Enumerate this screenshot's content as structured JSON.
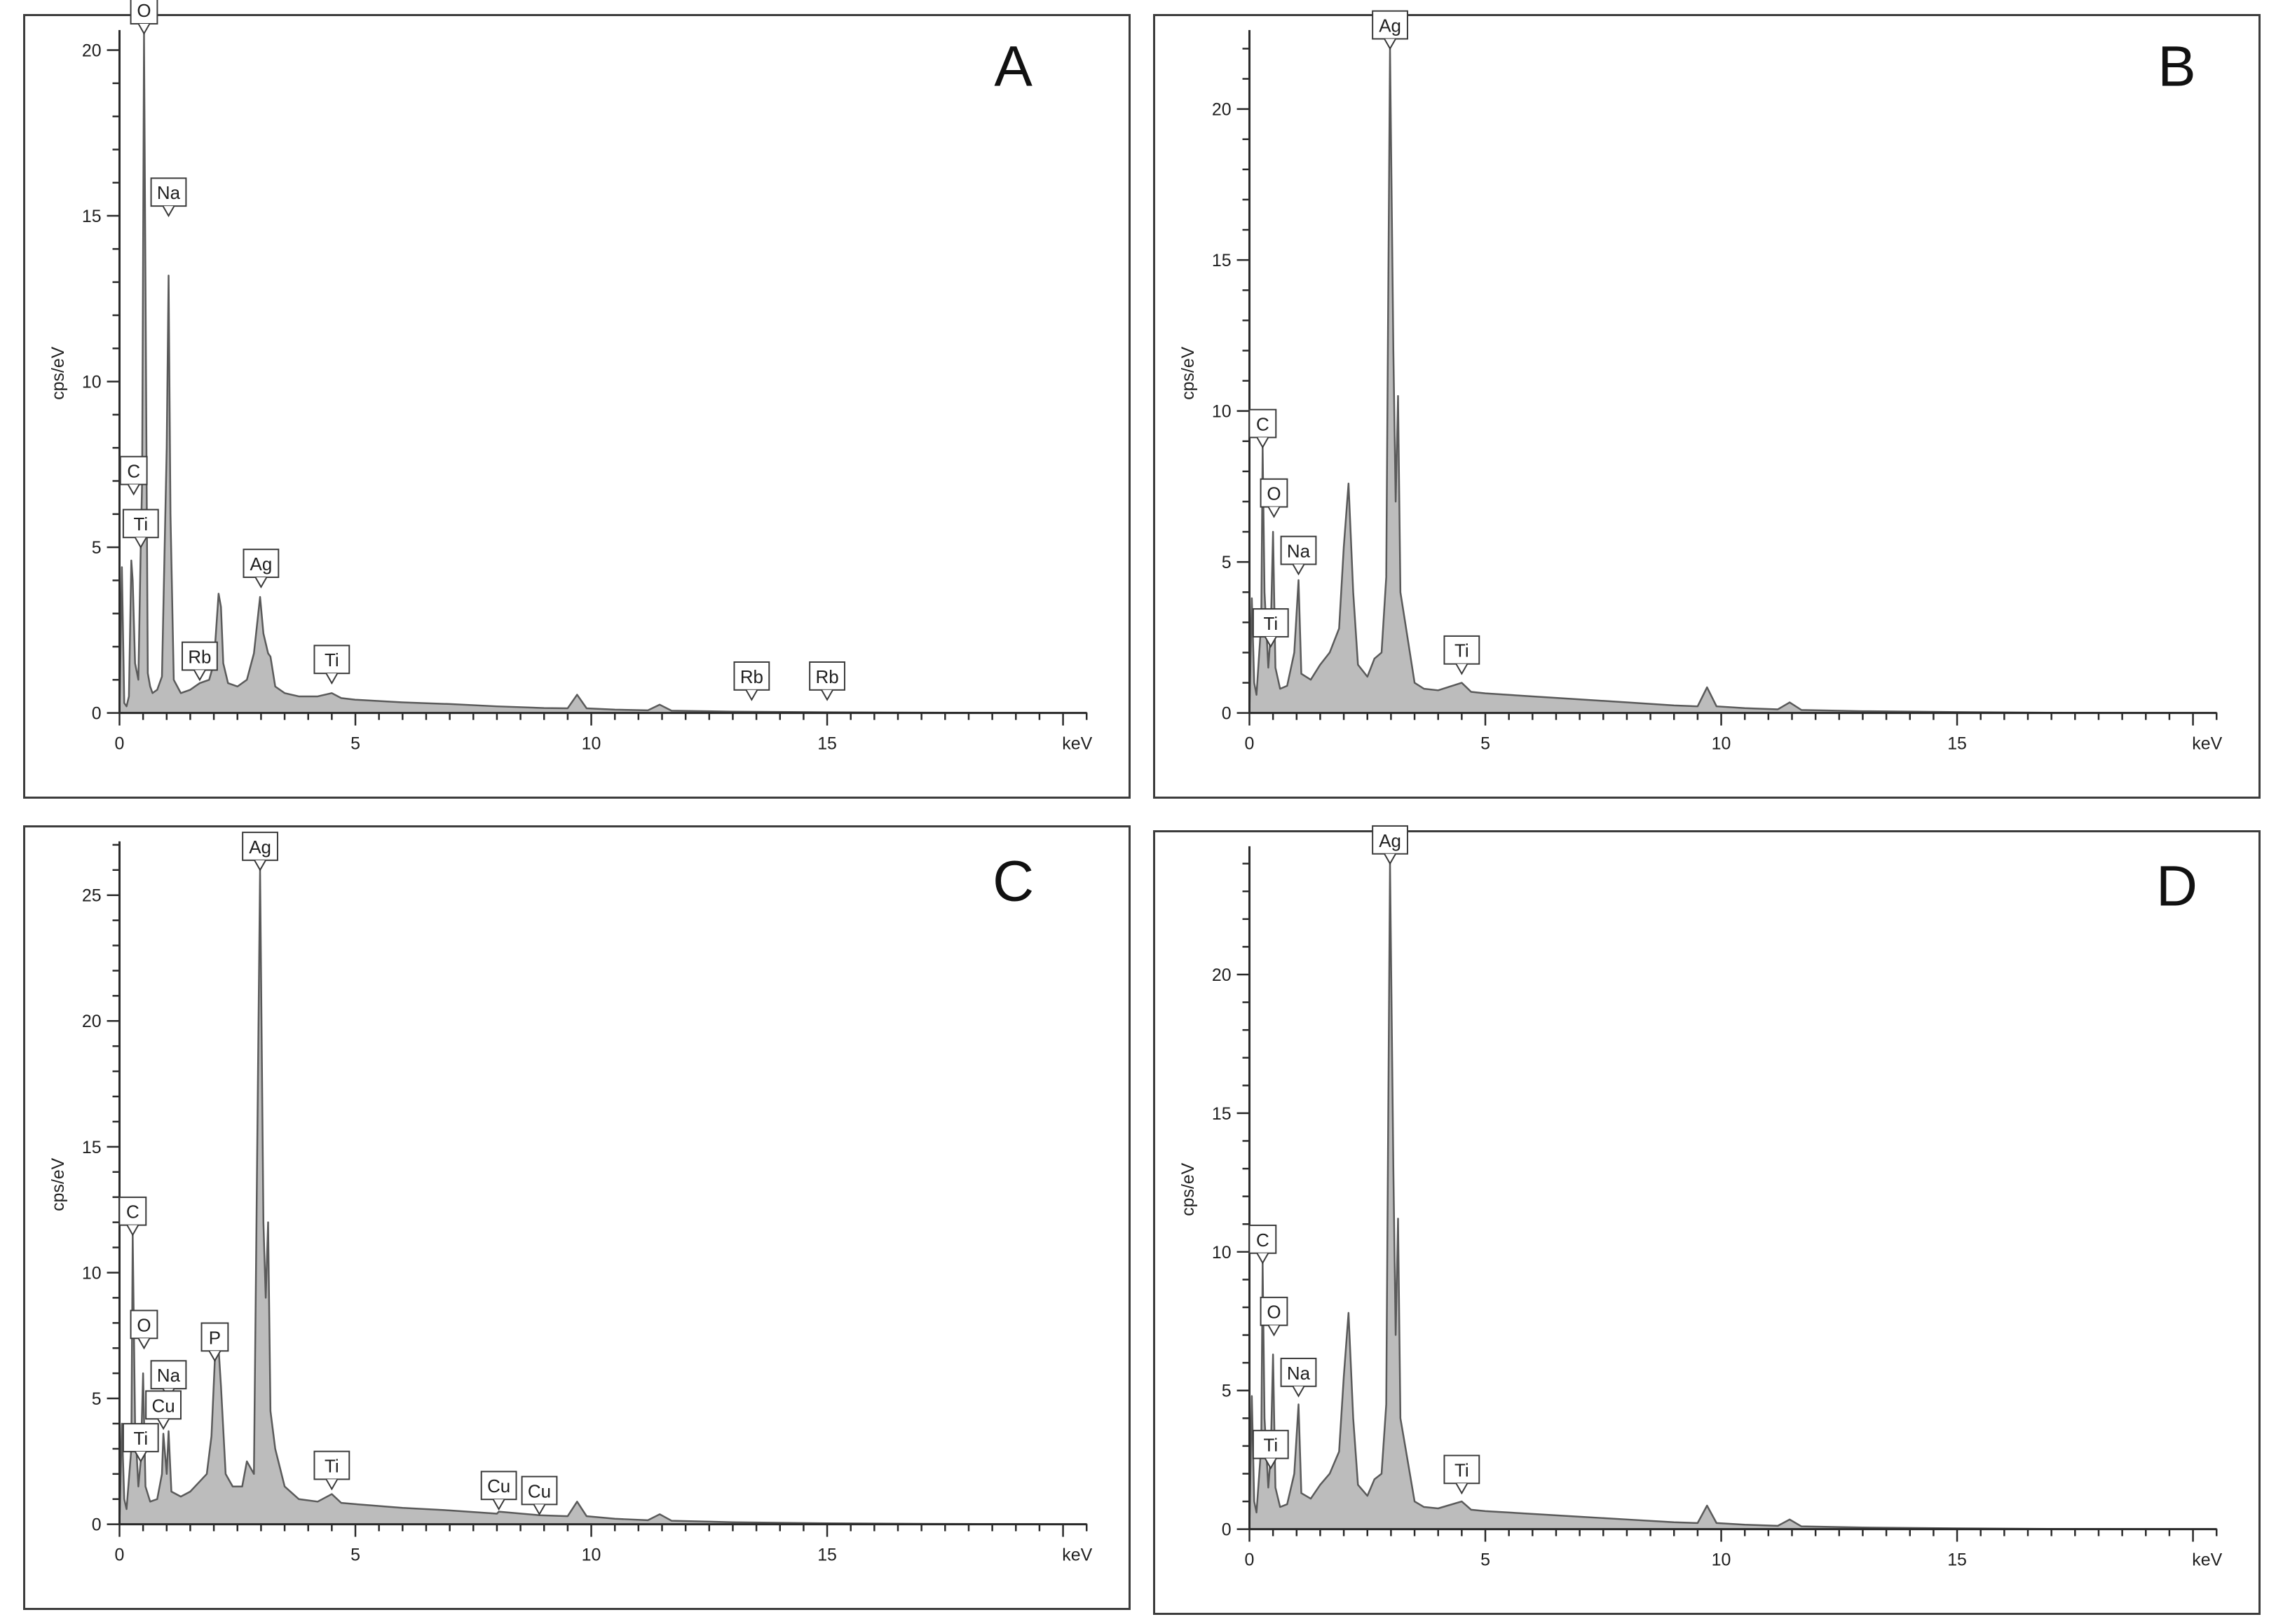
{
  "chart_data": [
    {
      "type": "area",
      "panel": "A",
      "ylabel": "cps/eV",
      "xunit": "keV",
      "xlim": [
        0,
        20.5
      ],
      "ylim": [
        0,
        20.5
      ],
      "yticks": [
        0,
        5,
        10,
        15,
        20
      ],
      "xticks": [
        0,
        5,
        10,
        15
      ],
      "spectrum": {
        "x": [
          0,
          0.05,
          0.1,
          0.15,
          0.2,
          0.25,
          0.28,
          0.33,
          0.4,
          0.45,
          0.48,
          0.52,
          0.55,
          0.6,
          0.65,
          0.7,
          0.8,
          0.9,
          1.0,
          1.04,
          1.08,
          1.15,
          1.3,
          1.5,
          1.7,
          1.9,
          2.0,
          2.1,
          2.15,
          2.2,
          2.3,
          2.5,
          2.7,
          2.85,
          2.98,
          3.05,
          3.15,
          3.2,
          3.3,
          3.5,
          3.8,
          4.2,
          4.5,
          4.7,
          5.0,
          6.0,
          7.0,
          8.0,
          9.0,
          9.5,
          9.7,
          9.9,
          10.5,
          11.2,
          11.45,
          11.7,
          13,
          15,
          17,
          20.5
        ],
        "y": [
          0,
          4.4,
          0.3,
          0.2,
          0.5,
          4.6,
          4.0,
          1.5,
          1.0,
          5.0,
          7.0,
          20.5,
          13.0,
          1.2,
          0.8,
          0.6,
          0.7,
          1.1,
          8.0,
          13.2,
          6.0,
          1.0,
          0.6,
          0.7,
          0.9,
          1.0,
          1.5,
          3.6,
          3.2,
          1.5,
          0.9,
          0.8,
          1.0,
          1.8,
          3.5,
          2.4,
          1.8,
          1.7,
          0.8,
          0.6,
          0.5,
          0.5,
          0.6,
          0.45,
          0.4,
          0.32,
          0.27,
          0.2,
          0.15,
          0.14,
          0.55,
          0.14,
          0.1,
          0.08,
          0.25,
          0.07,
          0.04,
          0.02,
          0.01,
          0
        ]
      },
      "peaks": [
        {
          "label": "O",
          "x": 0.52,
          "y": 20.5
        },
        {
          "label": "Na",
          "x": 1.04,
          "y": 15.0
        },
        {
          "label": "C",
          "x": 0.3,
          "y": 6.6
        },
        {
          "label": "Ti",
          "x": 0.45,
          "y": 5.0
        },
        {
          "label": "Ag",
          "x": 3.0,
          "y": 3.8
        },
        {
          "label": "Rb",
          "x": 1.7,
          "y": 1.0
        },
        {
          "label": "Ti",
          "x": 4.5,
          "y": 0.9
        },
        {
          "label": "Rb",
          "x": 13.4,
          "y": 0.4
        },
        {
          "label": "Rb",
          "x": 15.0,
          "y": 0.4
        }
      ]
    },
    {
      "type": "area",
      "panel": "B",
      "ylabel": "cps/eV",
      "xunit": "keV",
      "xlim": [
        0,
        20.5
      ],
      "ylim": [
        0,
        22.5
      ],
      "yticks": [
        0,
        5,
        10,
        15,
        20
      ],
      "xticks": [
        0,
        5,
        10,
        15
      ],
      "spectrum": {
        "x": [
          0,
          0.05,
          0.1,
          0.15,
          0.25,
          0.28,
          0.32,
          0.4,
          0.45,
          0.5,
          0.55,
          0.65,
          0.8,
          0.95,
          1.04,
          1.1,
          1.3,
          1.5,
          1.7,
          1.9,
          2.0,
          2.1,
          2.2,
          2.3,
          2.5,
          2.65,
          2.8,
          2.9,
          2.98,
          3.05,
          3.1,
          3.15,
          3.2,
          3.3,
          3.5,
          3.7,
          4.0,
          4.5,
          4.7,
          5.0,
          6,
          7,
          8,
          9,
          9.5,
          9.7,
          9.9,
          10.5,
          11.2,
          11.45,
          11.7,
          13,
          15,
          17,
          20.5
        ],
        "y": [
          0,
          3.8,
          1.0,
          0.6,
          3.0,
          8.8,
          4.0,
          1.5,
          2.6,
          6.0,
          1.5,
          0.8,
          0.9,
          2.0,
          4.4,
          1.3,
          1.1,
          1.6,
          2.0,
          2.8,
          5.5,
          7.6,
          4.0,
          1.6,
          1.2,
          1.8,
          2.0,
          4.5,
          22.0,
          12.0,
          7.0,
          10.5,
          4.0,
          3.0,
          1.0,
          0.8,
          0.75,
          1.0,
          0.7,
          0.65,
          0.55,
          0.45,
          0.35,
          0.25,
          0.22,
          0.85,
          0.22,
          0.16,
          0.12,
          0.35,
          0.1,
          0.06,
          0.03,
          0.01,
          0
        ]
      },
      "peaks": [
        {
          "label": "Ag",
          "x": 2.98,
          "y": 22.0
        },
        {
          "label": "C",
          "x": 0.28,
          "y": 8.8
        },
        {
          "label": "O",
          "x": 0.52,
          "y": 6.5
        },
        {
          "label": "Na",
          "x": 1.04,
          "y": 4.6
        },
        {
          "label": "Ti",
          "x": 0.45,
          "y": 2.2
        },
        {
          "label": "Ti",
          "x": 4.5,
          "y": 1.3
        }
      ]
    },
    {
      "type": "area",
      "panel": "C",
      "ylabel": "cps/eV",
      "xunit": "keV",
      "xlim": [
        0,
        20.5
      ],
      "ylim": [
        0,
        27
      ],
      "yticks": [
        0,
        5,
        10,
        15,
        20,
        25
      ],
      "xticks": [
        0,
        5,
        10,
        15
      ],
      "spectrum": {
        "x": [
          0,
          0.05,
          0.1,
          0.15,
          0.25,
          0.28,
          0.33,
          0.4,
          0.45,
          0.5,
          0.55,
          0.65,
          0.8,
          0.9,
          0.93,
          1.0,
          1.04,
          1.1,
          1.3,
          1.5,
          1.7,
          1.85,
          1.95,
          2.02,
          2.1,
          2.15,
          2.25,
          2.4,
          2.6,
          2.7,
          2.85,
          2.98,
          3.05,
          3.1,
          3.15,
          3.2,
          3.3,
          3.5,
          3.8,
          4.2,
          4.5,
          4.7,
          5,
          6,
          7,
          8,
          8.04,
          8.9,
          9.5,
          9.7,
          9.9,
          10.5,
          11.2,
          11.45,
          11.7,
          13,
          15,
          17,
          20.5
        ],
        "y": [
          0,
          4.0,
          1.0,
          0.6,
          3.0,
          11.5,
          4.0,
          1.5,
          2.5,
          6.0,
          1.5,
          0.9,
          1.0,
          2.0,
          3.6,
          2.0,
          3.7,
          1.3,
          1.1,
          1.3,
          1.7,
          2.0,
          3.5,
          6.5,
          7.0,
          5.5,
          2.0,
          1.5,
          1.5,
          2.5,
          2.0,
          26.0,
          12.0,
          9.0,
          12.0,
          4.5,
          3.0,
          1.5,
          1.0,
          0.9,
          1.2,
          0.85,
          0.8,
          0.65,
          0.55,
          0.42,
          0.5,
          0.36,
          0.32,
          0.9,
          0.32,
          0.22,
          0.16,
          0.4,
          0.14,
          0.08,
          0.04,
          0.02,
          0
        ]
      },
      "peaks": [
        {
          "label": "Ag",
          "x": 2.98,
          "y": 26.0
        },
        {
          "label": "C",
          "x": 0.28,
          "y": 11.5
        },
        {
          "label": "O",
          "x": 0.52,
          "y": 7.0
        },
        {
          "label": "P",
          "x": 2.02,
          "y": 6.5
        },
        {
          "label": "Na",
          "x": 1.04,
          "y": 5.0
        },
        {
          "label": "Cu",
          "x": 0.93,
          "y": 3.8
        },
        {
          "label": "Ti",
          "x": 0.45,
          "y": 2.5
        },
        {
          "label": "Ti",
          "x": 4.5,
          "y": 1.4
        },
        {
          "label": "Cu",
          "x": 8.04,
          "y": 0.6
        },
        {
          "label": "Cu",
          "x": 8.9,
          "y": 0.4
        }
      ]
    },
    {
      "type": "area",
      "panel": "D",
      "ylabel": "cps/eV",
      "xunit": "keV",
      "xlim": [
        0,
        20.5
      ],
      "ylim": [
        0,
        24.5
      ],
      "yticks": [
        0,
        5,
        10,
        15,
        20
      ],
      "xticks": [
        0,
        5,
        10,
        15
      ],
      "spectrum": {
        "x": [
          0,
          0.05,
          0.1,
          0.15,
          0.25,
          0.28,
          0.32,
          0.4,
          0.45,
          0.5,
          0.55,
          0.65,
          0.8,
          0.95,
          1.04,
          1.1,
          1.3,
          1.5,
          1.7,
          1.9,
          2.0,
          2.1,
          2.2,
          2.3,
          2.5,
          2.65,
          2.8,
          2.9,
          2.98,
          3.05,
          3.1,
          3.15,
          3.2,
          3.3,
          3.5,
          3.7,
          4.0,
          4.5,
          4.7,
          5.0,
          6,
          7,
          8,
          9,
          9.5,
          9.7,
          9.9,
          10.5,
          11.2,
          11.45,
          11.7,
          13,
          15,
          17,
          20.5
        ],
        "y": [
          0,
          4.8,
          1.0,
          0.6,
          3.0,
          9.6,
          4.0,
          1.5,
          2.6,
          6.3,
          1.5,
          0.8,
          0.9,
          2.0,
          4.5,
          1.3,
          1.1,
          1.6,
          2.0,
          2.8,
          5.5,
          7.8,
          4.0,
          1.6,
          1.2,
          1.8,
          2.0,
          4.5,
          24.0,
          13.0,
          7.0,
          11.2,
          4.0,
          3.0,
          1.0,
          0.8,
          0.75,
          1.0,
          0.7,
          0.65,
          0.55,
          0.45,
          0.35,
          0.25,
          0.22,
          0.85,
          0.22,
          0.16,
          0.12,
          0.35,
          0.1,
          0.06,
          0.03,
          0.01,
          0
        ]
      },
      "peaks": [
        {
          "label": "Ag",
          "x": 2.98,
          "y": 24.0
        },
        {
          "label": "C",
          "x": 0.28,
          "y": 9.6
        },
        {
          "label": "O",
          "x": 0.52,
          "y": 7.0
        },
        {
          "label": "Na",
          "x": 1.04,
          "y": 4.8
        },
        {
          "label": "Ti",
          "x": 0.45,
          "y": 2.2
        },
        {
          "label": "Ti",
          "x": 4.5,
          "y": 1.3
        }
      ]
    }
  ],
  "panels": {
    "A": {
      "letter": "A"
    },
    "B": {
      "letter": "B"
    },
    "C": {
      "letter": "C"
    },
    "D": {
      "letter": "D"
    }
  },
  "colors": {
    "fill": "#bcbcbc",
    "stroke": "#5a5a5a",
    "axis": "#2a2a2a",
    "frame": "#3c3c3c"
  }
}
